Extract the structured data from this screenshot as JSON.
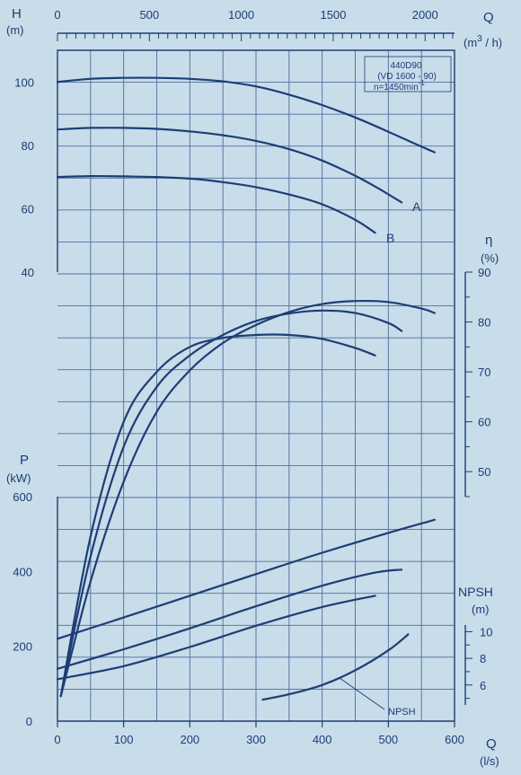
{
  "colors": {
    "background": "#c9dcea",
    "ink": "#1d3e74",
    "grid": "#4d6f9c"
  },
  "chart_data": {
    "type": "line",
    "model_box": [
      "440D90",
      "(VD 1600 - 90)",
      "n=1450min"
    ],
    "model_box_exp": "-1",
    "bottom_axis": {
      "label": "Q",
      "unit": "(l/s)",
      "range": [
        0,
        600
      ],
      "ticks": [
        "0",
        "100",
        "200",
        "300",
        "400",
        "500",
        "600"
      ]
    },
    "top_axis": {
      "label": "Q",
      "unit_a": "(m",
      "unit_exp": "3",
      "unit_b": " / h)",
      "range": [
        0,
        2160
      ],
      "ticks": [
        "0",
        "500",
        "1000",
        "1500",
        "2000"
      ]
    },
    "head_axis": {
      "label": "H",
      "unit": "(m)",
      "range": [
        40,
        110
      ],
      "ticks": [
        "40",
        "60",
        "80",
        "100"
      ]
    },
    "efficiency_axis": {
      "label": "η",
      "unit": "(%)",
      "range": [
        45,
        90
      ],
      "ticks": [
        "50",
        "60",
        "70",
        "80",
        "90"
      ]
    },
    "power_axis": {
      "label": "P",
      "unit": "(kW)",
      "range": [
        0,
        600
      ],
      "ticks": [
        "0",
        "200",
        "400",
        "600"
      ]
    },
    "npsh_axis": {
      "label": "NPSH",
      "unit": "(m)",
      "range": [
        4.5,
        10.5
      ],
      "ticks": [
        "6",
        "8",
        "10"
      ]
    },
    "series": [
      {
        "group": "head",
        "name": "",
        "x": [
          0,
          50,
          100,
          150,
          200,
          250,
          300,
          350,
          400,
          450,
          500,
          550,
          570
        ],
        "y": [
          100,
          101,
          101.3,
          101.3,
          101,
          100.2,
          98.6,
          96,
          92.7,
          88.8,
          84.3,
          79.6,
          77.8
        ]
      },
      {
        "group": "head",
        "name": "A",
        "x": [
          0,
          50,
          100,
          150,
          200,
          250,
          300,
          350,
          400,
          450,
          485,
          520
        ],
        "y": [
          85,
          85.5,
          85.5,
          85.2,
          84.4,
          83.2,
          81.4,
          78.8,
          75.2,
          70.4,
          66.4,
          62
        ]
      },
      {
        "group": "head",
        "name": "B",
        "x": [
          0,
          50,
          100,
          150,
          200,
          250,
          300,
          350,
          400,
          450,
          480
        ],
        "y": [
          70,
          70.3,
          70.2,
          70,
          69.5,
          68.4,
          66.8,
          64.5,
          61.4,
          56.5,
          52.4
        ]
      },
      {
        "group": "efficiency",
        "name": "",
        "x": [
          5,
          50,
          100,
          150,
          200,
          250,
          300,
          350,
          400,
          450,
          500,
          550,
          570
        ],
        "y": [
          5,
          28,
          48,
          62,
          70.3,
          75.8,
          79.4,
          82,
          83.6,
          84.2,
          84,
          82.7,
          81.8
        ]
      },
      {
        "group": "efficiency",
        "name": "",
        "x": [
          5,
          50,
          100,
          150,
          200,
          250,
          300,
          350,
          400,
          450,
          500,
          520
        ],
        "y": [
          5,
          33,
          55,
          67,
          73.3,
          77.4,
          80.2,
          81.7,
          82.3,
          81.8,
          79.8,
          78.2
        ]
      },
      {
        "group": "efficiency",
        "name": "",
        "x": [
          5,
          50,
          100,
          150,
          200,
          250,
          300,
          350,
          400,
          450,
          480
        ],
        "y": [
          5,
          37,
          60,
          70,
          75,
          76.8,
          77.4,
          77.4,
          76.6,
          74.8,
          73.3
        ]
      },
      {
        "group": "power",
        "name": "",
        "x": [
          0,
          100,
          200,
          300,
          400,
          500,
          570
        ],
        "y": [
          220,
          277,
          335,
          393,
          450,
          503,
          538
        ]
      },
      {
        "group": "power",
        "name": "",
        "x": [
          0,
          100,
          200,
          300,
          400,
          480,
          520
        ],
        "y": [
          140,
          192,
          248,
          307,
          362,
          397,
          405
        ]
      },
      {
        "group": "power",
        "name": "",
        "x": [
          0,
          100,
          200,
          300,
          400,
          480
        ],
        "y": [
          112,
          147,
          198,
          255,
          305,
          335
        ]
      },
      {
        "group": "npsh",
        "name": "NPSH",
        "x": [
          310,
          350,
          400,
          450,
          500,
          530
        ],
        "y": [
          4.9,
          5.3,
          6,
          7.1,
          8.6,
          9.8
        ]
      }
    ],
    "annotations": [
      "A",
      "B",
      "NPSH"
    ]
  }
}
